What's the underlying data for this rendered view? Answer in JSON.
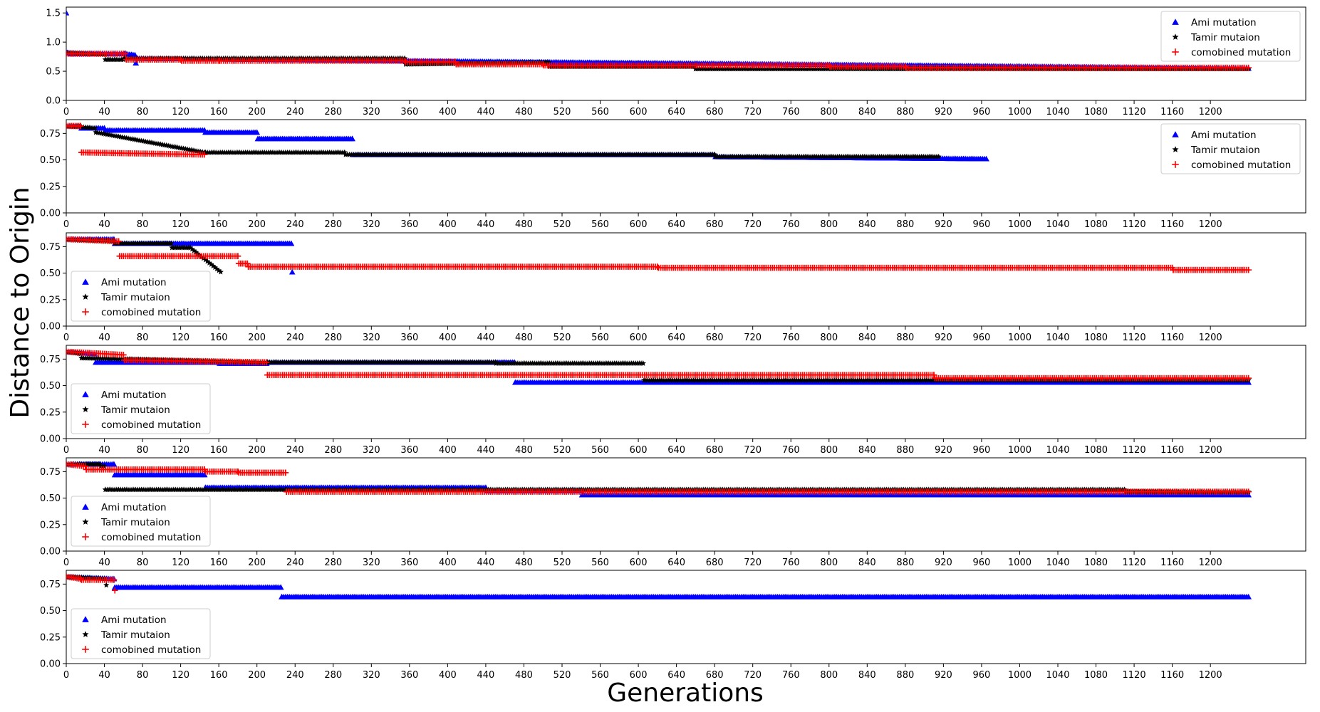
{
  "figure": {
    "xlabel": "Generations",
    "ylabel": "Distance to Origin"
  },
  "legend_entries": [
    {
      "label": "Ami mutation",
      "marker": "triangle-icon",
      "color": "#0000ff"
    },
    {
      "label": "Tamir mutaion",
      "marker": "star-icon",
      "color": "#000000"
    },
    {
      "label": "comobined mutation",
      "marker": "plus-icon",
      "color": "#ff0000"
    }
  ],
  "chart_data": [
    {
      "type": "scatter",
      "xlim": [
        0,
        1300
      ],
      "ylim": [
        0,
        1.6
      ],
      "xticks": [
        0,
        40,
        80,
        120,
        160,
        200,
        240,
        280,
        320,
        360,
        400,
        440,
        480,
        520,
        560,
        600,
        640,
        680,
        720,
        760,
        800,
        840,
        880,
        920,
        960,
        1000,
        1040,
        1080,
        1120,
        1160,
        1200
      ],
      "yticks": [
        0.0,
        0.5,
        1.0,
        1.5
      ],
      "legend_position": "top-right",
      "series": [
        {
          "name": "Ami mutation",
          "color": "#0000ff",
          "marker": "triangle",
          "x": [
            0,
            1,
            5,
            60,
            61,
            72,
            73,
            75,
            1240
          ],
          "y": [
            1.5,
            0.82,
            0.8,
            0.8,
            0.8,
            0.78,
            0.64,
            0.72,
            0.55
          ]
        },
        {
          "name": "Tamir mutaion",
          "color": "#000000",
          "marker": "star",
          "x": [
            0,
            40,
            41,
            60,
            61,
            355,
            356,
            506,
            507,
            659,
            660,
            1240
          ],
          "y": [
            0.82,
            0.79,
            0.7,
            0.7,
            0.72,
            0.72,
            0.62,
            0.65,
            0.58,
            0.58,
            0.54,
            0.54
          ]
        },
        {
          "name": "comobined mutation",
          "color": "#ff0000",
          "marker": "plus",
          "x": [
            0,
            62,
            63,
            120,
            121,
            160,
            161,
            355,
            356,
            408,
            409,
            500,
            501,
            800,
            801,
            880,
            881,
            1240
          ],
          "y": [
            0.8,
            0.8,
            0.7,
            0.7,
            0.68,
            0.68,
            0.68,
            0.68,
            0.66,
            0.66,
            0.62,
            0.62,
            0.6,
            0.6,
            0.58,
            0.58,
            0.56,
            0.56
          ]
        }
      ]
    },
    {
      "type": "scatter",
      "xlim": [
        0,
        1300
      ],
      "ylim": [
        0,
        0.88
      ],
      "xticks": [
        0,
        40,
        80,
        120,
        160,
        200,
        240,
        280,
        320,
        360,
        400,
        440,
        480,
        520,
        560,
        600,
        640,
        680,
        720,
        760,
        800,
        840,
        880,
        920,
        960,
        1000,
        1040,
        1080,
        1120,
        1160,
        1200
      ],
      "yticks": [
        0.0,
        0.25,
        0.5,
        0.75
      ],
      "legend_position": "top-right",
      "series": [
        {
          "name": "Ami mutation",
          "color": "#0000ff",
          "marker": "triangle",
          "x": [
            0,
            15,
            16,
            40,
            41,
            145,
            146,
            200,
            201,
            300,
            301,
            680,
            681,
            965
          ],
          "y": [
            0.82,
            0.82,
            0.8,
            0.8,
            0.78,
            0.78,
            0.76,
            0.76,
            0.7,
            0.7,
            0.55,
            0.55,
            0.53,
            0.51
          ]
        },
        {
          "name": "Tamir mutaion",
          "color": "#000000",
          "marker": "star",
          "x": [
            0,
            30,
            31,
            145,
            146,
            292,
            293,
            680,
            681,
            915
          ],
          "y": [
            0.82,
            0.8,
            0.76,
            0.57,
            0.57,
            0.57,
            0.55,
            0.55,
            0.53,
            0.53
          ]
        },
        {
          "name": "comobined mutation",
          "color": "#ff0000",
          "marker": "plus",
          "x": [
            0,
            15,
            16,
            145
          ],
          "y": [
            0.82,
            0.82,
            0.57,
            0.55
          ]
        }
      ]
    },
    {
      "type": "scatter",
      "xlim": [
        0,
        1300
      ],
      "ylim": [
        0,
        0.88
      ],
      "xticks": [
        0,
        40,
        80,
        120,
        160,
        200,
        240,
        280,
        320,
        360,
        400,
        440,
        480,
        520,
        560,
        600,
        640,
        680,
        720,
        760,
        800,
        840,
        880,
        920,
        960,
        1000,
        1040,
        1080,
        1120,
        1160,
        1200
      ],
      "yticks": [
        0.0,
        0.25,
        0.5,
        0.75
      ],
      "legend_position": "lower-left",
      "series": [
        {
          "name": "Ami mutation",
          "color": "#0000ff",
          "marker": "triangle",
          "x": [
            0,
            50,
            51,
            236,
            237
          ],
          "y": [
            0.82,
            0.82,
            0.78,
            0.78,
            0.51
          ]
        },
        {
          "name": "Tamir mutaion",
          "color": "#000000",
          "marker": "star",
          "x": [
            0,
            50,
            51,
            110,
            111,
            130,
            162
          ],
          "y": [
            0.82,
            0.8,
            0.78,
            0.78,
            0.74,
            0.74,
            0.51
          ]
        },
        {
          "name": "comobined mutation",
          "color": "#ff0000",
          "marker": "plus",
          "x": [
            0,
            55,
            56,
            180,
            181,
            190,
            191,
            620,
            621,
            1160,
            1161,
            1240
          ],
          "y": [
            0.82,
            0.8,
            0.66,
            0.66,
            0.59,
            0.59,
            0.56,
            0.56,
            0.55,
            0.55,
            0.53,
            0.53
          ]
        }
      ]
    },
    {
      "type": "scatter",
      "xlim": [
        0,
        1300
      ],
      "ylim": [
        0,
        0.88
      ],
      "xticks": [
        0,
        40,
        80,
        120,
        160,
        200,
        240,
        280,
        320,
        360,
        400,
        440,
        480,
        520,
        560,
        600,
        640,
        680,
        720,
        760,
        800,
        840,
        880,
        920,
        960,
        1000,
        1040,
        1080,
        1120,
        1160,
        1200
      ],
      "yticks": [
        0.0,
        0.25,
        0.5,
        0.75
      ],
      "legend_position": "lower-left",
      "series": [
        {
          "name": "Ami mutation",
          "color": "#0000ff",
          "marker": "triangle",
          "x": [
            0,
            30,
            31,
            160,
            161,
            210,
            211,
            470,
            471,
            1240
          ],
          "y": [
            0.82,
            0.8,
            0.72,
            0.72,
            0.71,
            0.71,
            0.72,
            0.72,
            0.53,
            0.53
          ]
        },
        {
          "name": "Tamir mutaion",
          "color": "#000000",
          "marker": "star",
          "x": [
            0,
            15,
            16,
            210,
            211,
            450,
            451,
            605,
            606,
            1240
          ],
          "y": [
            0.82,
            0.8,
            0.76,
            0.72,
            0.72,
            0.72,
            0.71,
            0.71,
            0.55,
            0.55
          ]
        },
        {
          "name": "comobined mutation",
          "color": "#ff0000",
          "marker": "plus",
          "x": [
            0,
            60,
            61,
            210,
            211,
            910,
            911,
            1240
          ],
          "y": [
            0.82,
            0.79,
            0.74,
            0.72,
            0.6,
            0.6,
            0.57,
            0.57
          ]
        }
      ]
    },
    {
      "type": "scatter",
      "xlim": [
        0,
        1300
      ],
      "ylim": [
        0,
        0.88
      ],
      "xticks": [
        0,
        40,
        80,
        120,
        160,
        200,
        240,
        280,
        320,
        360,
        400,
        440,
        480,
        520,
        560,
        600,
        640,
        680,
        720,
        760,
        800,
        840,
        880,
        920,
        960,
        1000,
        1040,
        1080,
        1120,
        1160,
        1200
      ],
      "yticks": [
        0.0,
        0.25,
        0.5,
        0.75
      ],
      "legend_position": "lower-left",
      "series": [
        {
          "name": "Ami mutation",
          "color": "#0000ff",
          "marker": "triangle",
          "x": [
            0,
            50,
            51,
            145,
            146,
            440,
            441,
            540,
            541,
            1240
          ],
          "y": [
            0.82,
            0.82,
            0.72,
            0.72,
            0.6,
            0.6,
            0.57,
            0.57,
            0.53,
            0.53
          ]
        },
        {
          "name": "Tamir mutaion",
          "color": "#000000",
          "marker": "star",
          "x": [
            0,
            35,
            36,
            40,
            41,
            230,
            231,
            1110,
            1111,
            1240
          ],
          "y": [
            0.82,
            0.82,
            0.8,
            0.8,
            0.58,
            0.58,
            0.58,
            0.58,
            0.56,
            0.56
          ]
        },
        {
          "name": "comobined mutation",
          "color": "#ff0000",
          "marker": "plus",
          "x": [
            0,
            20,
            21,
            145,
            146,
            180,
            181,
            230,
            231,
            1240
          ],
          "y": [
            0.82,
            0.8,
            0.77,
            0.77,
            0.75,
            0.75,
            0.74,
            0.74,
            0.56,
            0.56
          ]
        }
      ]
    },
    {
      "type": "scatter",
      "xlim": [
        0,
        1300
      ],
      "ylim": [
        0,
        0.88
      ],
      "xticks": [
        0,
        40,
        80,
        120,
        160,
        200,
        240,
        280,
        320,
        360,
        400,
        440,
        480,
        520,
        560,
        600,
        640,
        680,
        720,
        760,
        800,
        840,
        880,
        920,
        960,
        1000,
        1040,
        1080,
        1120,
        1160,
        1200
      ],
      "yticks": [
        0.0,
        0.25,
        0.5,
        0.75
      ],
      "legend_position": "lower-left",
      "series": [
        {
          "name": "Ami mutation",
          "color": "#0000ff",
          "marker": "triangle",
          "x": [
            0,
            50,
            51,
            225,
            226,
            1240
          ],
          "y": [
            0.82,
            0.8,
            0.72,
            0.72,
            0.63,
            0.63
          ]
        },
        {
          "name": "Tamir mutaion",
          "color": "#000000",
          "marker": "star",
          "x": [
            0,
            40,
            42
          ],
          "y": [
            0.82,
            0.8,
            0.74
          ]
        },
        {
          "name": "comobined mutation",
          "color": "#ff0000",
          "marker": "plus",
          "x": [
            0,
            15,
            16,
            50,
            51
          ],
          "y": [
            0.82,
            0.8,
            0.79,
            0.79,
            0.69
          ]
        }
      ]
    }
  ]
}
